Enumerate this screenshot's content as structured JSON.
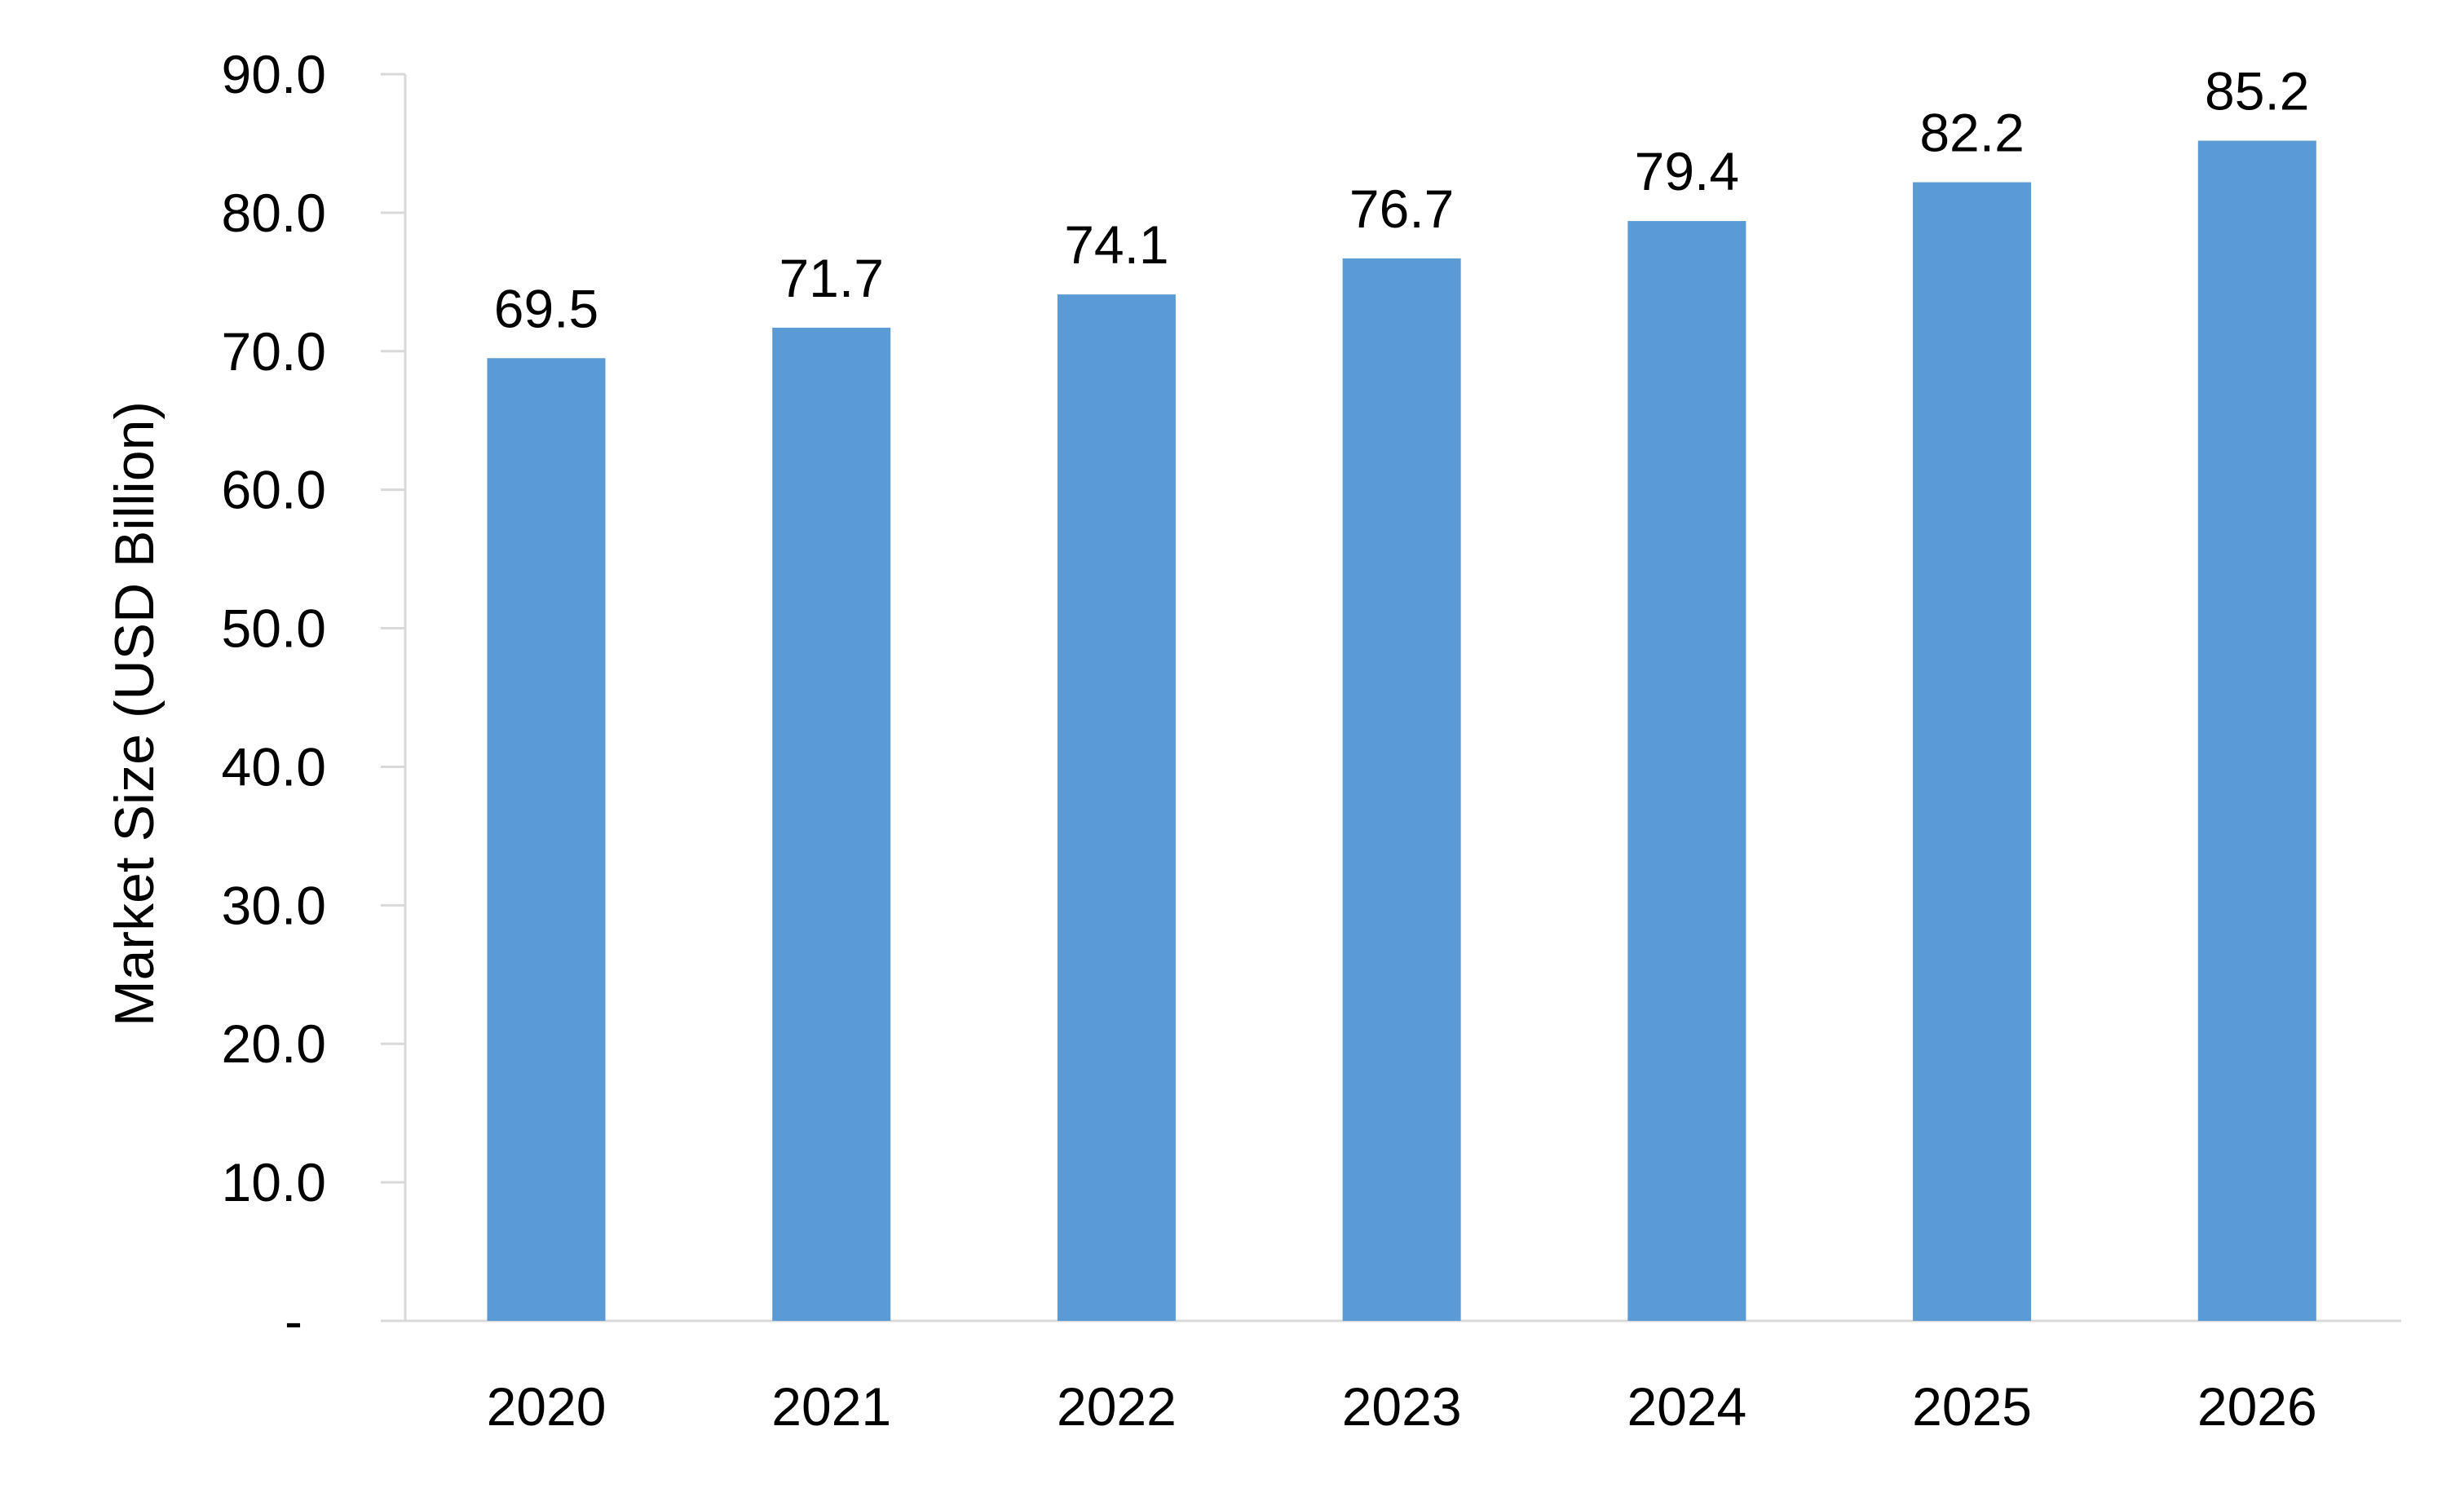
{
  "chart_data": {
    "type": "bar",
    "title": "",
    "xlabel": "",
    "ylabel": "Market Size (USD Billion)",
    "categories": [
      "2020",
      "2021",
      "2022",
      "2023",
      "2024",
      "2025",
      "2026"
    ],
    "values": [
      69.5,
      71.7,
      74.1,
      76.7,
      79.4,
      82.2,
      85.2
    ],
    "data_labels": [
      "69.5",
      "71.7",
      "74.1",
      "76.7",
      "79.4",
      "82.2",
      "85.2"
    ],
    "ylim": [
      0,
      90
    ],
    "yticks": [
      0,
      10,
      20,
      30,
      40,
      50,
      60,
      70,
      80,
      90
    ],
    "ytick_labels": [
      "-",
      "10.0",
      "20.0",
      "30.0",
      "40.0",
      "50.0",
      "60.0",
      "70.0",
      "80.0",
      "90.0"
    ],
    "grid": false,
    "legend": "none",
    "bar_color": "#5B9BD5",
    "axis_color": "#D9D9D9"
  }
}
